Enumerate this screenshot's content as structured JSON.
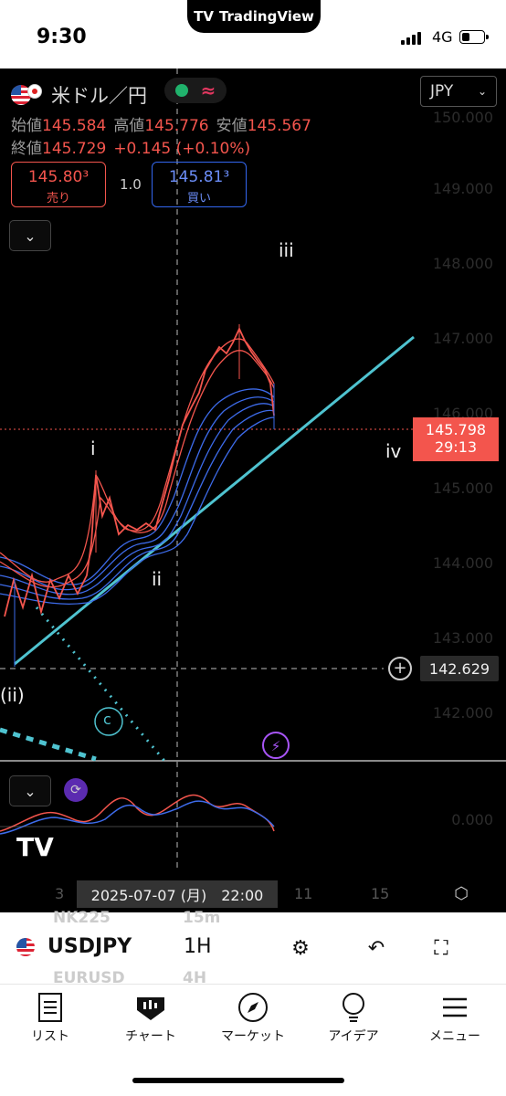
{
  "status_bar": {
    "time": "9:30",
    "network": "4G",
    "app_badge": "TradingView"
  },
  "chart": {
    "symbol_name": "米ドル／円",
    "currency_selector": "JPY",
    "ohlc": {
      "open_label": "始値",
      "open": "145.584",
      "high_label": "高値",
      "high": "145.776",
      "low_label": "安値",
      "low": "145.567",
      "close_label": "終値",
      "close": "145.729",
      "change": "+0.145 (+0.10%)"
    },
    "sell": {
      "price": "145.80³",
      "label": "売り"
    },
    "spread": "1.0",
    "buy": {
      "price": "145.81³",
      "label": "買い"
    },
    "price_axis": [
      "150.000",
      "149.000",
      "148.000",
      "147.000",
      "146.000",
      "145.000",
      "144.000",
      "143.000",
      "142.000"
    ],
    "current_price": "145.798",
    "countdown": "29:13",
    "crosshair_price": "142.629",
    "crosshair_date": "2025-07-07 (月)　22:00",
    "time_axis": [
      "3",
      "11",
      "15"
    ],
    "wave_labels": {
      "i": "i",
      "ii": "ii",
      "iii": "iii",
      "iv": "iv",
      "wave_ii_paren": "(ii)",
      "c": "c"
    },
    "oscillator_zero": "0.000",
    "colors": {
      "up": "#f3554d",
      "down": "#3d6bea",
      "trendline": "#4fc3d0"
    }
  },
  "toolbar": {
    "symbol": "USDJPY",
    "interval": "1H",
    "bg_watch": [
      "NK225",
      "15m",
      "EURUSD",
      "4H"
    ]
  },
  "nav": {
    "list": "リスト",
    "chart": "チャート",
    "market": "マーケット",
    "ideas": "アイデア",
    "menu": "メニュー"
  }
}
